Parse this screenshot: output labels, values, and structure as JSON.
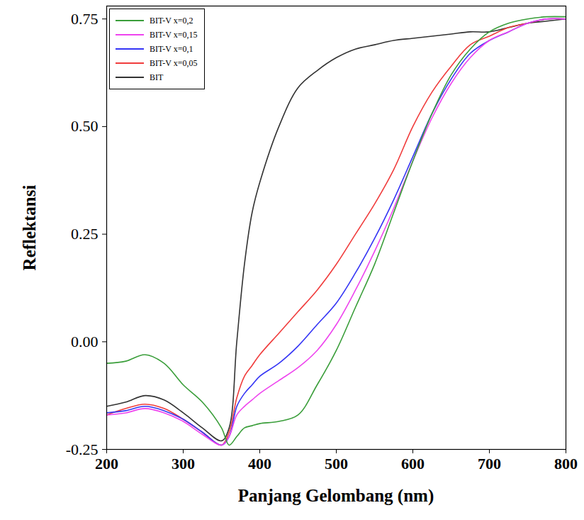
{
  "chart_data": {
    "type": "line",
    "x_label": "Panjang Gelombang (nm)",
    "y_label": "Reflektansi",
    "x": [
      200,
      225,
      250,
      275,
      300,
      325,
      350,
      360,
      370,
      380,
      390,
      400,
      425,
      450,
      475,
      500,
      525,
      550,
      575,
      600,
      625,
      650,
      675,
      700,
      725,
      750,
      775,
      800
    ],
    "series": [
      {
        "name": "BIT-V x=0,2",
        "color": "#3a9e3a",
        "values": [
          -0.05,
          -0.045,
          -0.03,
          -0.05,
          -0.1,
          -0.14,
          -0.2,
          -0.24,
          -0.22,
          -0.2,
          -0.195,
          -0.19,
          -0.185,
          -0.17,
          -0.1,
          -0.02,
          0.08,
          0.18,
          0.3,
          0.42,
          0.53,
          0.62,
          0.68,
          0.72,
          0.74,
          0.75,
          0.755,
          0.755
        ]
      },
      {
        "name": "BIT-V x=0,15",
        "color": "#ee44ee",
        "values": [
          -0.17,
          -0.165,
          -0.155,
          -0.165,
          -0.185,
          -0.215,
          -0.24,
          -0.22,
          -0.17,
          -0.15,
          -0.135,
          -0.12,
          -0.09,
          -0.06,
          -0.02,
          0.04,
          0.12,
          0.21,
          0.31,
          0.42,
          0.52,
          0.6,
          0.66,
          0.7,
          0.72,
          0.74,
          0.75,
          0.75
        ]
      },
      {
        "name": "BIT-V x=0,1",
        "color": "#3535f5",
        "values": [
          -0.165,
          -0.16,
          -0.15,
          -0.16,
          -0.18,
          -0.21,
          -0.24,
          -0.22,
          -0.15,
          -0.12,
          -0.1,
          -0.08,
          -0.05,
          -0.01,
          0.04,
          0.09,
          0.16,
          0.24,
          0.33,
          0.43,
          0.53,
          0.61,
          0.67,
          0.7,
          0.72,
          0.74,
          0.75,
          0.75
        ]
      },
      {
        "name": "BIT-V x=0,05",
        "color": "#f03c3c",
        "values": [
          -0.17,
          -0.155,
          -0.145,
          -0.155,
          -0.18,
          -0.21,
          -0.24,
          -0.21,
          -0.13,
          -0.08,
          -0.055,
          -0.03,
          0.02,
          0.07,
          0.12,
          0.18,
          0.25,
          0.32,
          0.4,
          0.5,
          0.58,
          0.64,
          0.69,
          0.71,
          0.73,
          0.74,
          0.75,
          0.75
        ]
      },
      {
        "name": "BIT",
        "color": "#333333",
        "values": [
          -0.15,
          -0.14,
          -0.125,
          -0.135,
          -0.165,
          -0.2,
          -0.23,
          -0.2,
          0.0,
          0.18,
          0.3,
          0.37,
          0.5,
          0.59,
          0.63,
          0.66,
          0.68,
          0.69,
          0.7,
          0.705,
          0.71,
          0.715,
          0.72,
          0.72,
          0.73,
          0.74,
          0.745,
          0.75
        ]
      }
    ],
    "xlim": [
      200,
      800
    ],
    "xticks": [
      200,
      300,
      400,
      500,
      600,
      700,
      800
    ],
    "ylim": [
      -0.25,
      0.78
    ],
    "yticks": [
      {
        "value": -0.25,
        "label": "-0.25"
      },
      {
        "value": 0,
        "label": "0.00"
      },
      {
        "value": 0.25,
        "label": "0.25"
      },
      {
        "value": 0.5,
        "label": "0.50"
      },
      {
        "value": 0.75,
        "label": "0.75"
      }
    ],
    "legend": "top-left",
    "grid": false
  }
}
